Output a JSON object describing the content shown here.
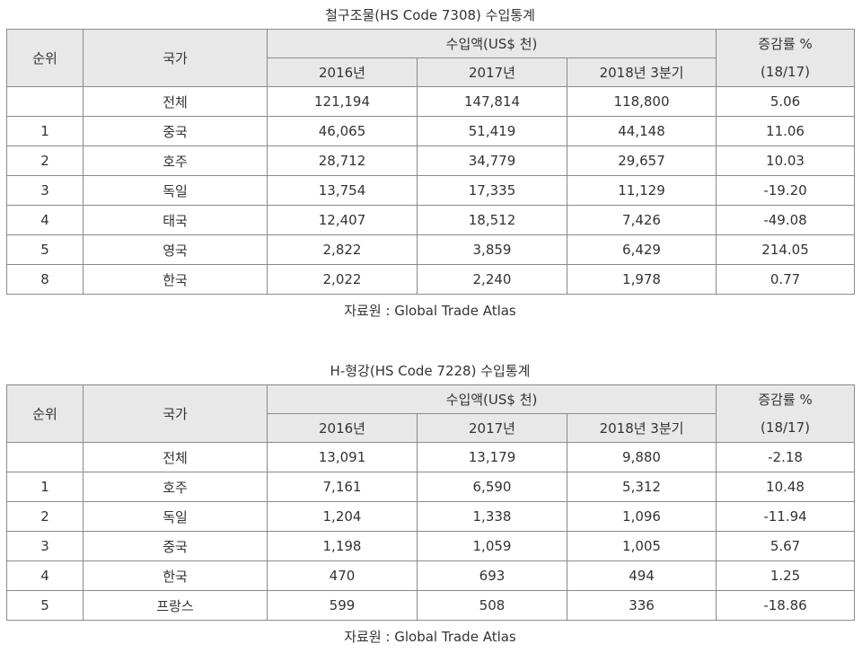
{
  "tables": [
    {
      "title": "철구조물(HS Code 7308) 수입통계",
      "header": {
        "rank": "순위",
        "country": "국가",
        "group": "수입액(US$ 천)",
        "years": [
          "2016년",
          "2017년",
          "2018년 3분기"
        ],
        "change": "증감률 %",
        "change_sub": "(18/17)"
      },
      "rows": [
        [
          null,
          "전체",
          "121,194",
          "147,814",
          "118,800",
          "5.06"
        ],
        [
          "1",
          "중국",
          "46,065",
          "51,419",
          "44,148",
          "11.06"
        ],
        [
          "2",
          "호주",
          "28,712",
          "34,779",
          "29,657",
          "10.03"
        ],
        [
          "3",
          "독일",
          "13,754",
          "17,335",
          "11,129",
          "-19.20"
        ],
        [
          "4",
          "태국",
          "12,407",
          "18,512",
          "7,426",
          "-49.08"
        ],
        [
          "5",
          "영국",
          "2,822",
          "3,859",
          "6,429",
          "214.05"
        ],
        [
          "8",
          "한국",
          "2,022",
          "2,240",
          "1,978",
          "0.77"
        ]
      ],
      "source": "자료원 : Global Trade Atlas"
    },
    {
      "title": "H-형강(HS Code 7228) 수입통계",
      "header": {
        "rank": "순위",
        "country": "국가",
        "group": "수입액(US$ 천)",
        "years": [
          "2016년",
          "2017년",
          "2018년 3분기"
        ],
        "change": "증감률 %",
        "change_sub": "(18/17)"
      },
      "rows": [
        [
          null,
          "전체",
          "13,091",
          "13,179",
          "9,880",
          "-2.18"
        ],
        [
          "1",
          "호주",
          "7,161",
          "6,590",
          "5,312",
          "10.48"
        ],
        [
          "2",
          "독일",
          "1,204",
          "1,338",
          "1,096",
          "-11.94"
        ],
        [
          "3",
          "중국",
          "1,198",
          "1,059",
          "1,005",
          "5.67"
        ],
        [
          "4",
          "한국",
          "470",
          "693",
          "494",
          "1.25"
        ],
        [
          "5",
          "프랑스",
          "599",
          "508",
          "336",
          "-18.86"
        ]
      ],
      "source": "자료원 : Global Trade Atlas"
    }
  ]
}
